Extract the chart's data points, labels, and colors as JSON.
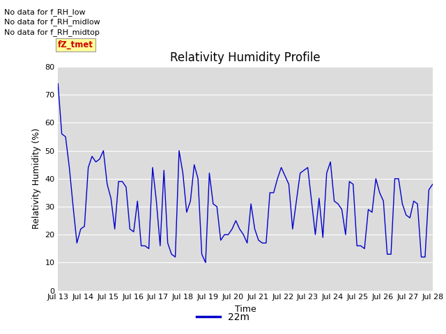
{
  "title": "Relativity Humidity Profile",
  "ylabel": "Relativity Humidity (%)",
  "xlabel": "Time",
  "legend_label": "22m",
  "line_color": "#0000cc",
  "bg_color": "#dcdcdc",
  "ylim": [
    0,
    80
  ],
  "yticks": [
    0,
    10,
    20,
    30,
    40,
    50,
    60,
    70,
    80
  ],
  "xtick_labels": [
    "Jul 13",
    "Jul 14",
    "Jul 15",
    "Jul 16",
    "Jul 17",
    "Jul 18",
    "Jul 19",
    "Jul 20",
    "Jul 21",
    "Jul 22",
    "Jul 23",
    "Jul 24",
    "Jul 25",
    "Jul 26",
    "Jul 27",
    "Jul 28"
  ],
  "annotations": [
    "No data for f_RH_low",
    "No data for f_RH_midlow",
    "No data for f_RH_midtop"
  ],
  "annotation_color": "#000000",
  "fz_tmet_label": "fZ_tmet",
  "fz_tmet_color": "#cc0000",
  "fz_tmet_bg": "#ffff99",
  "humidity_data": [
    74,
    56,
    55,
    44,
    30,
    17,
    22,
    23,
    44,
    48,
    46,
    47,
    50,
    38,
    33,
    22,
    39,
    39,
    37,
    22,
    21,
    32,
    16,
    16,
    15,
    44,
    32,
    16,
    43,
    17,
    13,
    12,
    50,
    42,
    28,
    32,
    45,
    40,
    13,
    10,
    42,
    31,
    30,
    18,
    20,
    20,
    22,
    25,
    22,
    20,
    17,
    31,
    22,
    18,
    17,
    17,
    35,
    35,
    40,
    44,
    41,
    38,
    22,
    32,
    42,
    43,
    44,
    32,
    20,
    33,
    19,
    42,
    46,
    32,
    31,
    29,
    20,
    39,
    38,
    16,
    16,
    15,
    29,
    28,
    40,
    35,
    32,
    13,
    13,
    40,
    40,
    31,
    27,
    26,
    32,
    31,
    12,
    12,
    36,
    38
  ],
  "figsize": [
    6.4,
    4.8
  ],
  "dpi": 100
}
